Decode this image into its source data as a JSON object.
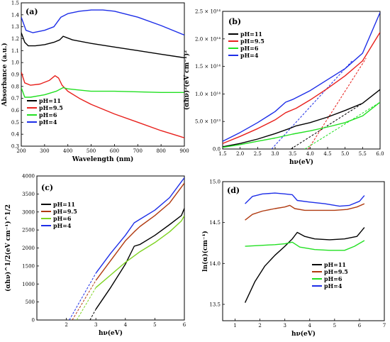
{
  "chart_data": [
    {
      "panel": "(a)",
      "type": "line",
      "xlabel": "Wavelength (nm)",
      "ylabel": "Absorbance (a.u.)",
      "xlim": [
        200,
        900
      ],
      "ylim": [
        0.3,
        1.5
      ],
      "xticks": [
        200,
        300,
        400,
        500,
        600,
        700,
        800,
        900
      ],
      "yticks": [
        0.3,
        0.4,
        0.5,
        0.6,
        0.7,
        0.8,
        0.9,
        1.0,
        1.1,
        1.2,
        1.3,
        1.4,
        1.5
      ],
      "ytick_labels": [
        "0.3",
        "0.4",
        "0.5",
        "0.6",
        "0.7",
        "0.8",
        "0.9",
        "1.0",
        "1.1",
        "1.2",
        "1.3",
        "1.4",
        "1.5"
      ],
      "legend_placement": "bottom-left",
      "series": [
        {
          "name": "pH=11",
          "color": "#000000",
          "x": [
            200,
            215,
            230,
            260,
            300,
            340,
            365,
            380,
            420,
            500,
            600,
            700,
            800,
            900
          ],
          "y": [
            1.25,
            1.17,
            1.14,
            1.14,
            1.15,
            1.17,
            1.19,
            1.22,
            1.19,
            1.16,
            1.13,
            1.1,
            1.07,
            1.04
          ]
        },
        {
          "name": "pH=9.5",
          "color": "#e8201c",
          "x": [
            200,
            215,
            240,
            280,
            320,
            345,
            360,
            375,
            400,
            450,
            500,
            600,
            700,
            800,
            900
          ],
          "y": [
            0.92,
            0.83,
            0.81,
            0.82,
            0.85,
            0.89,
            0.87,
            0.81,
            0.76,
            0.7,
            0.65,
            0.57,
            0.5,
            0.43,
            0.37
          ]
        },
        {
          "name": "pH=6",
          "color": "#22e022",
          "x": [
            200,
            215,
            240,
            300,
            350,
            380,
            400,
            450,
            500,
            600,
            700,
            800,
            900
          ],
          "y": [
            0.79,
            0.71,
            0.71,
            0.73,
            0.76,
            0.79,
            0.78,
            0.77,
            0.76,
            0.76,
            0.755,
            0.75,
            0.75
          ]
        },
        {
          "name": "pH=4",
          "color": "#1d2ee8",
          "x": [
            200,
            220,
            250,
            300,
            340,
            370,
            400,
            450,
            500,
            550,
            600,
            700,
            800,
            900
          ],
          "y": [
            1.38,
            1.27,
            1.25,
            1.27,
            1.3,
            1.38,
            1.41,
            1.43,
            1.44,
            1.44,
            1.43,
            1.38,
            1.31,
            1.23
          ]
        }
      ]
    },
    {
      "panel": "(b)",
      "type": "line",
      "xlabel": "hν(eV)",
      "ylabel": "(αhν)²(eV cm⁻¹)²",
      "xlim": [
        1.5,
        6.0
      ],
      "ylim": [
        0,
        250000000000000.0
      ],
      "xticks": [
        1.5,
        2.0,
        2.5,
        3.0,
        3.5,
        4.0,
        4.5,
        5.0,
        5.5,
        6.0
      ],
      "xtick_labels": [
        "1.5",
        "2.0",
        "2.5",
        "3.0",
        "3.5",
        "4.0",
        "4.5",
        "5.0",
        "5.5",
        "6.0"
      ],
      "yticks": [
        0,
        50000000000000.0,
        100000000000000.0,
        150000000000000.0,
        200000000000000.0,
        250000000000000.0
      ],
      "ytick_labels": [
        "0.0",
        "5.0 × 10¹³",
        "1.0 × 10¹⁴",
        "1.5 × 10¹⁴",
        "2.0 × 10¹⁴",
        "2.5 × 10¹⁴"
      ],
      "legend_placement": "top-left",
      "series": [
        {
          "name": "pH=11",
          "color": "#000000",
          "x": [
            1.5,
            2.0,
            2.5,
            3.0,
            3.4,
            3.6,
            4.0,
            4.5,
            5.0,
            5.5,
            6.0
          ],
          "y": [
            4000000000000.0,
            10000000000000.0,
            18000000000000.0,
            28000000000000.0,
            37000000000000.0,
            42000000000000.0,
            48000000000000.0,
            58000000000000.0,
            70000000000000.0,
            83000000000000.0,
            108000000000000.0
          ]
        },
        {
          "name": "pH=9.5",
          "color": "#e8201c",
          "x": [
            1.5,
            2.0,
            2.5,
            3.0,
            3.3,
            3.6,
            4.0,
            4.5,
            5.0,
            5.5,
            6.0
          ],
          "y": [
            10000000000000.0,
            23000000000000.0,
            37000000000000.0,
            53000000000000.0,
            66000000000000.0,
            74000000000000.0,
            89000000000000.0,
            110000000000000.0,
            133000000000000.0,
            160000000000000.0,
            212000000000000.0
          ]
        },
        {
          "name": "pH=6",
          "color": "#22e022",
          "x": [
            1.5,
            2.0,
            2.5,
            3.0,
            3.5,
            4.0,
            4.5,
            5.0,
            5.5,
            6.0
          ],
          "y": [
            3000000000000.0,
            8000000000000.0,
            14000000000000.0,
            20000000000000.0,
            27000000000000.0,
            33000000000000.0,
            40000000000000.0,
            48000000000000.0,
            60000000000000.0,
            85000000000000.0
          ]
        },
        {
          "name": "pH=4",
          "color": "#1d2ee8",
          "x": [
            1.5,
            2.0,
            2.5,
            3.0,
            3.3,
            3.5,
            4.0,
            4.5,
            5.0,
            5.5,
            6.0
          ],
          "y": [
            14000000000000.0,
            30000000000000.0,
            48000000000000.0,
            68000000000000.0,
            85000000000000.0,
            90000000000000.0,
            106000000000000.0,
            126000000000000.0,
            146000000000000.0,
            174000000000000.0,
            248000000000000.0
          ]
        }
      ],
      "tangent_lines": [
        {
          "series": "pH=11",
          "color": "#000000",
          "x": [
            3.45,
            5.5
          ],
          "y": [
            0,
            83000000000000.0
          ]
        },
        {
          "series": "pH=9.5",
          "color": "#e8201c",
          "x": [
            3.95,
            5.6
          ],
          "y": [
            0,
            165000000000000.0
          ]
        },
        {
          "series": "pH=6",
          "color": "#22e022",
          "x": [
            3.85,
            6.0
          ],
          "y": [
            0,
            85000000000000.0
          ]
        },
        {
          "series": "pH=4",
          "color": "#1d2ee8",
          "x": [
            2.9,
            5.2
          ],
          "y": [
            0,
            160000000000000.0
          ]
        }
      ]
    },
    {
      "panel": "(c)",
      "type": "line",
      "xlabel": "hν(eV)",
      "ylabel": "(αhν)^1/2(eV cm⁻¹)^1/2",
      "xlim": [
        1,
        6
      ],
      "ylim": [
        0,
        4000
      ],
      "xticks": [
        2,
        3,
        4,
        5,
        6
      ],
      "yticks": [
        0,
        500,
        1000,
        1500,
        2000,
        2500,
        3000,
        3500,
        4000
      ],
      "legend_placement": "top-left",
      "series": [
        {
          "name": "pH=11",
          "color": "#000000",
          "x": [
            3.0,
            3.5,
            4.0,
            4.3,
            4.5,
            5.0,
            5.5,
            5.9,
            6.0
          ],
          "y": [
            300,
            900,
            1550,
            2050,
            2100,
            2350,
            2650,
            2900,
            3100
          ]
        },
        {
          "name": "pH=9.5",
          "color": "#b03a10",
          "x": [
            3.0,
            3.5,
            4.0,
            4.3,
            4.5,
            5.0,
            5.5,
            6.0
          ],
          "y": [
            1100,
            1650,
            2200,
            2450,
            2600,
            2900,
            3250,
            3800
          ]
        },
        {
          "name": "pH=6",
          "color": "#7ed321",
          "x": [
            3.0,
            3.5,
            4.0,
            4.5,
            5.0,
            5.5,
            5.9,
            6.0
          ],
          "y": [
            900,
            1250,
            1600,
            1900,
            2150,
            2450,
            2750,
            2900
          ]
        },
        {
          "name": "pH=4",
          "color": "#1d2ee8",
          "x": [
            3.0,
            3.5,
            4.0,
            4.3,
            4.5,
            5.0,
            5.5,
            6.0
          ],
          "y": [
            1300,
            1850,
            2350,
            2700,
            2800,
            3050,
            3400,
            3950
          ]
        }
      ],
      "tangent_lines": [
        {
          "series": "pH=11",
          "color": "#000000",
          "x": [
            2.8,
            3.0
          ],
          "y": [
            0,
            300
          ]
        },
        {
          "series": "pH=9.5",
          "color": "#b03a10",
          "x": [
            2.2,
            3.0
          ],
          "y": [
            0,
            1100
          ]
        },
        {
          "series": "pH=6",
          "color": "#7ed321",
          "x": [
            2.35,
            3.0
          ],
          "y": [
            0,
            900
          ]
        },
        {
          "series": "pH=4",
          "color": "#1d2ee8",
          "x": [
            2.1,
            3.0
          ],
          "y": [
            0,
            1300
          ]
        }
      ]
    },
    {
      "panel": "(d)",
      "type": "line",
      "xlabel": "hν(eV)",
      "ylabel": "ln(α)(cm⁻¹)",
      "xlim": [
        0.5,
        7
      ],
      "ylim": [
        13.3,
        15.0
      ],
      "xticks": [
        1,
        2,
        3,
        4,
        5,
        6,
        7
      ],
      "yticks": [
        13.5,
        14.0,
        14.5,
        15.0
      ],
      "ytick_labels": [
        "13.5",
        "14.0",
        "14.5",
        "15.0"
      ],
      "legend_placement": "bottom-right",
      "series": [
        {
          "name": "pH=11",
          "color": "#000000",
          "x": [
            1.4,
            1.8,
            2.2,
            2.6,
            3.0,
            3.3,
            3.5,
            3.8,
            4.2,
            4.8,
            5.4,
            5.9,
            6.2
          ],
          "y": [
            13.52,
            13.78,
            13.97,
            14.1,
            14.21,
            14.3,
            14.38,
            14.33,
            14.3,
            14.29,
            14.3,
            14.33,
            14.44
          ]
        },
        {
          "name": "pH=9.5",
          "color": "#b03a10",
          "x": [
            1.4,
            1.7,
            2.1,
            2.6,
            3.0,
            3.2,
            3.4,
            3.8,
            4.4,
            5.0,
            5.5,
            5.9,
            6.2
          ],
          "y": [
            14.53,
            14.6,
            14.64,
            14.67,
            14.69,
            14.71,
            14.67,
            14.65,
            14.65,
            14.65,
            14.66,
            14.69,
            14.73
          ]
        },
        {
          "name": "pH=6",
          "color": "#22e022",
          "x": [
            1.4,
            2.0,
            2.6,
            3.0,
            3.3,
            3.6,
            4.2,
            4.8,
            5.4,
            5.8,
            6.2
          ],
          "y": [
            14.21,
            14.22,
            14.23,
            14.24,
            14.26,
            14.2,
            14.17,
            14.16,
            14.16,
            14.21,
            14.28
          ]
        },
        {
          "name": "pH=4",
          "color": "#1d2ee8",
          "x": [
            1.4,
            1.7,
            2.1,
            2.6,
            3.0,
            3.3,
            3.5,
            4.0,
            4.6,
            5.2,
            5.6,
            6.0,
            6.2
          ],
          "y": [
            14.73,
            14.82,
            14.85,
            14.86,
            14.85,
            14.84,
            14.77,
            14.75,
            14.73,
            14.7,
            14.71,
            14.76,
            14.83
          ]
        }
      ]
    }
  ]
}
